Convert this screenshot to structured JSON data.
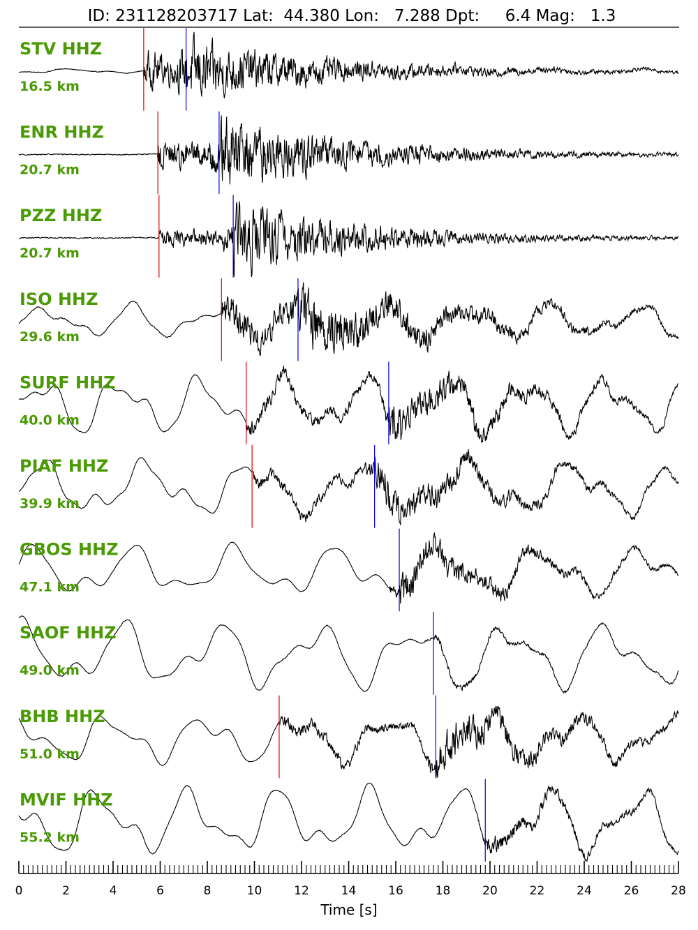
{
  "chart_data": {
    "type": "line",
    "title": "ID: 231128203717 Lat:  44.380 Lon:   7.288 Dpt:     6.4 Mag:   1.3",
    "xlabel": "Time [s]",
    "xlim": [
      0,
      28
    ],
    "x_major_ticks": [
      0,
      2,
      4,
      6,
      8,
      10,
      12,
      14,
      16,
      18,
      20,
      22,
      24,
      26,
      28
    ],
    "x_tick_labels": [
      "0",
      "2",
      "4",
      "6",
      "8",
      "10",
      "12",
      "14",
      "16",
      "18",
      "20",
      "22",
      "24",
      "26",
      "28"
    ],
    "x_minor_step": 0.2,
    "colors": {
      "station_label": "#4a9a04",
      "trace": "#000000",
      "p_pick": "#e00000",
      "s_pick": "#0000dd"
    },
    "series": [
      {
        "name": "STV HHZ",
        "distance": "16.5 km",
        "p_pick": 5.3,
        "s_pick": 7.1,
        "amp_base": 0.3,
        "amp_p": 1.0,
        "amp_s": 1.0,
        "low_amp": 0.25
      },
      {
        "name": "ENR HHZ",
        "distance": "20.7 km",
        "p_pick": 5.9,
        "s_pick": 8.5,
        "amp_base": 0.05,
        "amp_p": 0.55,
        "amp_s": 1.0,
        "low_amp": 0.15
      },
      {
        "name": "PZZ HHZ",
        "distance": "20.7 km",
        "p_pick": 5.95,
        "s_pick": 9.1,
        "amp_base": 0.05,
        "amp_p": 0.3,
        "amp_s": 1.0,
        "low_amp": 0.1
      },
      {
        "name": "ISO HHZ",
        "distance": "29.6 km",
        "p_pick": 8.6,
        "s_pick": 11.85,
        "amp_base": 0.4,
        "amp_p": 0.6,
        "amp_s": 0.7,
        "low_amp": 1.0
      },
      {
        "name": "SURF HHZ",
        "distance": "40.0 km",
        "p_pick": 9.65,
        "s_pick": 15.7,
        "amp_base": 0.8,
        "amp_p": 0.35,
        "amp_s": 0.7,
        "low_amp": 1.0
      },
      {
        "name": "PIAF HHZ",
        "distance": "39.9 km",
        "p_pick": 9.9,
        "s_pick": 15.1,
        "amp_base": 0.8,
        "amp_p": 0.3,
        "amp_s": 0.7,
        "low_amp": 1.0
      },
      {
        "name": "GBOS HHZ",
        "distance": "47.1 km",
        "p_pick": null,
        "s_pick": 16.15,
        "amp_base": 0.9,
        "amp_p": 0.3,
        "amp_s": 0.9,
        "low_amp": 0.9
      },
      {
        "name": "SAOF HHZ",
        "distance": "49.0 km",
        "p_pick": null,
        "s_pick": 17.6,
        "amp_base": 1.0,
        "amp_p": 0.1,
        "amp_s": 0.15,
        "low_amp": 1.0
      },
      {
        "name": "BHB HHZ",
        "distance": "51.0 km",
        "p_pick": 11.05,
        "s_pick": 17.7,
        "amp_base": 0.8,
        "amp_p": 0.35,
        "amp_s": 0.9,
        "low_amp": 1.0
      },
      {
        "name": "MVIF HHZ",
        "distance": "55.2 km",
        "p_pick": null,
        "s_pick": 19.8,
        "amp_base": 0.9,
        "amp_p": 0.1,
        "amp_s": 0.4,
        "low_amp": 1.0
      }
    ]
  }
}
